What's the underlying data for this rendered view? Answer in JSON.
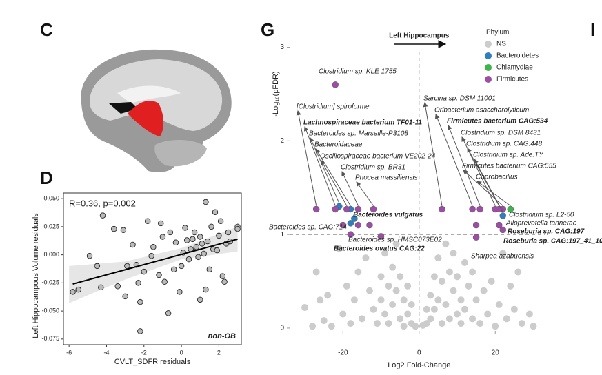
{
  "panel_labels": [
    "C",
    "D",
    "G",
    "I"
  ],
  "chart_data": [
    {
      "type": "scatter",
      "xlabel": "CVLT_SDFR residuals",
      "ylabel": "Left Hippocampous Volume residuals",
      "annotations": [
        "R=0.36, p=0.002",
        "non-OB"
      ],
      "xlim": [
        -6.3,
        3.2
      ],
      "ylim": [
        -0.08,
        0.055
      ],
      "xticks": [
        -6,
        -4,
        -2,
        0,
        2
      ],
      "yticks": [
        -0.075,
        {
          "value": -0.05,
          "label": "-0.050"
        },
        -0.025,
        {
          "value": 0,
          "label": "0.000"
        },
        0.025,
        {
          "value": 0.05,
          "label": "0.050"
        }
      ],
      "series": [
        {
          "name": "non-OB",
          "color": "#bbbbbb",
          "x": [
            -5.8,
            -5.5,
            -4.9,
            -4.5,
            -4.3,
            -4.2,
            -3.6,
            -3.4,
            -3.1,
            -3.0,
            -2.9,
            -2.6,
            -2.4,
            -2.3,
            -2.2,
            -2.2,
            -2.0,
            -1.8,
            -1.6,
            -1.5,
            -1.2,
            -1.1,
            -1.0,
            -0.9,
            -0.7,
            -0.6,
            -0.4,
            -0.3,
            -0.1,
            0,
            0.1,
            0.2,
            0.3,
            0.4,
            0.5,
            0.6,
            0.7,
            0.8,
            0.9,
            1.0,
            1.1,
            1.2,
            1.3,
            1.3,
            1.4,
            1.5,
            1.6,
            1.7,
            1.8,
            1.9,
            2.0,
            2.1,
            2.2,
            2.3,
            2.4,
            2.5,
            2.6,
            3.0,
            3.0,
            1.0
          ],
          "values": [
            -0.033,
            -0.031,
            -0.001,
            -0.01,
            -0.029,
            0.035,
            0.023,
            -0.028,
            0.022,
            -0.037,
            -0.01,
            0.009,
            -0.009,
            -0.025,
            -0.042,
            -0.068,
            -0.015,
            0.03,
            -0.001,
            0.007,
            -0.018,
            0.028,
            0.016,
            -0.024,
            -0.052,
            0.02,
            -0.013,
            0.011,
            -0.033,
            -0.01,
            0.002,
            0.024,
            0.013,
            -0.004,
            0.005,
            0.014,
            0.02,
            0.007,
            -0.002,
            0.016,
            0.01,
            0.001,
            0.047,
            -0.031,
            0.012,
            -0.013,
            0.025,
            0.005,
            0.038,
            0.004,
            0.017,
            0.03,
            -0.019,
            -0.024,
            0.01,
            0.02,
            0.012,
            0.025,
            0.023,
            -0.04
          ]
        }
      ],
      "fit": {
        "x": [
          -5.8,
          3.0
        ],
        "y": [
          -0.026,
          0.014
        ]
      },
      "band": {
        "x": [
          -6,
          -3,
          0,
          3
        ],
        "lower": [
          -0.043,
          -0.022,
          -0.004,
          0.003
        ],
        "upper": [
          -0.01,
          -0.006,
          0.006,
          0.025
        ]
      }
    },
    {
      "type": "volcano",
      "title": "Left Hippocampus",
      "xlabel": "Log2 Fold-Change",
      "ylabel": "-Log₁₀(pFDR)",
      "legend_title": "Phylum",
      "xlim": [
        -34,
        33
      ],
      "ylim": [
        -0.03,
        3.1
      ],
      "xticks": [
        -20,
        0,
        20
      ],
      "yticks": [
        0,
        1,
        2,
        3
      ],
      "hline": 1,
      "vline": 0,
      "series": [
        {
          "name": "NS",
          "color": "#cccccc",
          "x": [
            -30,
            -27,
            -25,
            -24,
            -23,
            -21,
            -20,
            -19,
            -18,
            -17,
            -16,
            -15,
            -14,
            -13,
            -12,
            -11,
            -10,
            -10,
            -9,
            -9,
            -8,
            -8,
            -7,
            -7,
            -6,
            -6,
            -5,
            -5,
            -4,
            -4,
            -3,
            -3,
            -2,
            -2,
            -1,
            1,
            2,
            2,
            3,
            3,
            4,
            4,
            5,
            5,
            6,
            6,
            7,
            7,
            8,
            8,
            9,
            9,
            10,
            10,
            11,
            11,
            12,
            12,
            13,
            14,
            14,
            15,
            16,
            17,
            18,
            19,
            20,
            21,
            22,
            23,
            24,
            25,
            27,
            29,
            -28,
            -26,
            26,
            30
          ],
          "values": [
            0.22,
            0.6,
            0.08,
            0.35,
            0.02,
            0.85,
            0.15,
            0.45,
            0.05,
            0.3,
            0.6,
            0.1,
            0.75,
            0.4,
            0.2,
            0.05,
            0.55,
            0.3,
            0.8,
            0.15,
            0.45,
            0.05,
            0.65,
            0.25,
            0.9,
            0.4,
            0.1,
            0.55,
            0.3,
            0.02,
            0.15,
            0.45,
            0.05,
            0.25,
            0.02,
            0.03,
            0.2,
            0.05,
            0.35,
            0.1,
            0.55,
            0.2,
            0.75,
            0.3,
            0.05,
            0.5,
            0.9,
            0.25,
            0.6,
            0.1,
            0.4,
            0.8,
            0.15,
            0.55,
            0.3,
            0.05,
            0.7,
            0.2,
            0.45,
            0.1,
            0.6,
            0.3,
            0.05,
            0.4,
            0.15,
            0.5,
            0.02,
            0.25,
            0.8,
            0.1,
            0.45,
            0.2,
            0.05,
            0.15,
            0.02,
            0.3,
            0.6,
            0.02
          ]
        },
        {
          "name": "Bacteroidetes",
          "color": "#2e7fc0",
          "x": [
            -21,
            -18,
            -18,
            -17,
            22
          ],
          "values": [
            1.3,
            1.27,
            1.12,
            1.17,
            1.2
          ]
        },
        {
          "name": "Chlamydiae",
          "color": "#3cb54a",
          "x": [
            24
          ],
          "values": [
            1.27
          ]
        },
        {
          "name": "Firmicutes",
          "color": "#9b4ea3",
          "x": [
            -22,
            -27,
            -22,
            -19,
            -16,
            -12,
            -20,
            -16,
            -13,
            -10,
            -18,
            6,
            14,
            16,
            20,
            22,
            21,
            15,
            21,
            15,
            22
          ],
          "values": [
            2.6,
            1.27,
            1.27,
            1.27,
            1.27,
            1.27,
            1.1,
            1.1,
            1.1,
            0.98,
            1.0,
            1.27,
            1.27,
            1.27,
            1.27,
            1.27,
            1.27,
            1.1,
            1.1,
            0.97,
            1.05
          ]
        }
      ],
      "annotations": [
        {
          "text": "Clostridium sp. KLE 1755",
          "bold": false
        },
        {
          "text": "[Clostridium] spiroforme",
          "bold": false
        },
        {
          "text": "Lachnospiraceae bacterium TF01-11",
          "bold": true
        },
        {
          "text": "Bacteroides sp. Marseille-P3108",
          "bold": false
        },
        {
          "text": "Bacteroidaceae",
          "bold": false
        },
        {
          "text": "Oscillospiraceae bacterium VE202-24",
          "bold": false
        },
        {
          "text": "Clostridium sp. BR31",
          "bold": false
        },
        {
          "text": "Phocea massiliensis",
          "bold": false
        },
        {
          "text": "Bacteroides vulgatus",
          "bold": true
        },
        {
          "text": "Bacteroides sp. CAG:714",
          "bold": false
        },
        {
          "text": "Bacteroides sp. HMSC073E02",
          "bold": false
        },
        {
          "text": "Bacteroides ovatus CAG:22",
          "bold": true
        },
        {
          "text": "Sarcina sp. DSM 11001",
          "bold": false
        },
        {
          "text": "Oribacterium asaccharolyticum",
          "bold": false
        },
        {
          "text": "Firmicutes bacterium CAG:534",
          "bold": true
        },
        {
          "text": "Clostridium sp. DSM 8431",
          "bold": false
        },
        {
          "text": "Clostridium sp. CAG:448",
          "bold": false
        },
        {
          "text": "Clostridium sp. Ade.TY",
          "bold": false
        },
        {
          "text": "Firmicutes bacterium CAG:555",
          "bold": false
        },
        {
          "text": "Coprobacillus",
          "bold": false
        },
        {
          "text": "Clostridium sp. L2-50",
          "bold": false
        },
        {
          "text": "Alloprevotella tannerae",
          "bold": false
        },
        {
          "text": "Roseburia sp. CAG:197",
          "bold": true
        },
        {
          "text": "Roseburia sp. CAG:197_41_10",
          "bold": true
        },
        {
          "text": "Sharpea azabuensis",
          "bold": false
        }
      ]
    }
  ]
}
